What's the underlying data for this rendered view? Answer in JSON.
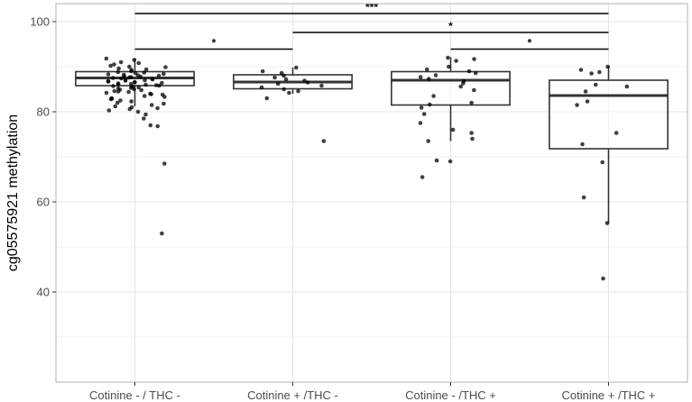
{
  "chart_data": {
    "type": "box",
    "ylabel": "cg05575921 methylation",
    "xlabel": "",
    "ylim": [
      20,
      104
    ],
    "yticks": [
      40,
      60,
      80,
      100
    ],
    "grid": true,
    "categories": [
      "Cotinine - / THC -",
      "Cotinine + /THC -",
      "Cotinine - /THC +",
      "Cotinine + /THC +"
    ],
    "boxes": [
      {
        "q1": 85.8,
        "median": 87.5,
        "q3": 88.9,
        "whisker_low": 81.2,
        "whisker_high": 91.8
      },
      {
        "q1": 85.1,
        "median": 86.6,
        "q3": 88.2,
        "whisker_low": 84.0,
        "whisker_high": 89.8
      },
      {
        "q1": 81.5,
        "median": 87.0,
        "q3": 88.9,
        "whisker_low": 73.5,
        "whisker_high": 92.1
      },
      {
        "q1": 71.8,
        "median": 83.6,
        "q3": 87.0,
        "whisker_low": 55.3,
        "whisker_high": 90.0
      }
    ],
    "outliers": [
      [
        68.5,
        53.0,
        76.8,
        77.0,
        78.5
      ],
      [
        73.5
      ],
      [
        69.0,
        65.5,
        69.2
      ],
      [
        43.0
      ]
    ],
    "points": [
      [
        91.5,
        90.8,
        90.2,
        89.6,
        89.0,
        88.6,
        88.3,
        88.0,
        87.8,
        87.6,
        87.4,
        87.2,
        87.0,
        86.8,
        86.6,
        86.3,
        86.0,
        85.7,
        85.4,
        85.0,
        84.6,
        84.2,
        83.8,
        83.3,
        82.8,
        82.3,
        81.8,
        81.2,
        80.6,
        80.0,
        79.4,
        91.0,
        90.5,
        89.9,
        89.3,
        88.8,
        88.1,
        87.9,
        87.5,
        87.3,
        87.1,
        86.9,
        86.7,
        86.4,
        86.1,
        85.8,
        85.5,
        85.2,
        84.8,
        84.4,
        83.9,
        83.5,
        82.9,
        82.0,
        81.0,
        80.3,
        91.8,
        90.0,
        89.4,
        88.7,
        88.4,
        88.2,
        87.7,
        86.5,
        86.2,
        85.9,
        85.6,
        85.3,
        84.9,
        84.5,
        84.0,
        83.0,
        82.5,
        81.5,
        80.8
      ],
      [
        89.8,
        89.0,
        88.6,
        88.0,
        87.6,
        87.2,
        86.9,
        86.5,
        86.2,
        85.8,
        85.4,
        85.0,
        84.6,
        84.2,
        83.0
      ],
      [
        92.0,
        91.7,
        91.3,
        90.0,
        89.4,
        89.0,
        88.6,
        88.1,
        87.7,
        87.3,
        86.8,
        86.3,
        85.6,
        84.8,
        83.5,
        82.0,
        81.6,
        80.9,
        79.5,
        77.5,
        76.0,
        75.3,
        74.0,
        73.5
      ],
      [
        90.0,
        89.3,
        88.8,
        88.5,
        86.0,
        85.6,
        84.5,
        82.3,
        81.5,
        75.3,
        72.8,
        68.8,
        61.0,
        55.3
      ]
    ],
    "significance": [
      {
        "from": 0,
        "to": 3,
        "label": "***",
        "y": 101.8
      },
      {
        "from": 1,
        "to": 3,
        "label": "*",
        "y": 97.6
      },
      {
        "from": 0,
        "to": 1,
        "label": "*",
        "y": 93.9
      },
      {
        "from": 2,
        "to": 3,
        "label": "*",
        "y": 93.9
      }
    ],
    "colors": {
      "box_stroke": "#333333",
      "point": "#000000",
      "grid": "#e5e5e5",
      "panel_border": "#b3b3b3",
      "bracket": "#000000"
    }
  }
}
